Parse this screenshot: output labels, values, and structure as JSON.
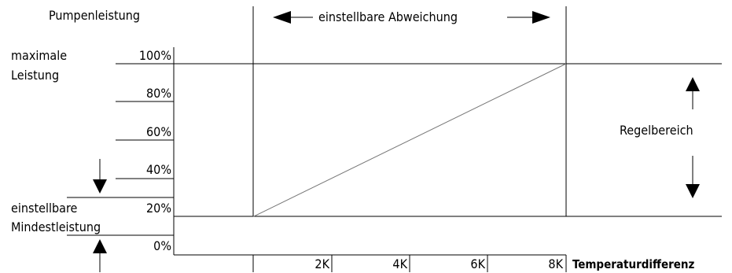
{
  "ylabel": "Pumpenleistung",
  "deviation_label": "einstellbare Abweichung",
  "max_label": [
    "maximale",
    "Leistung"
  ],
  "min_label": [
    "einstellbare",
    "Mindestleistung"
  ],
  "control_range_label": "Regelbereich",
  "xlabel": "Temperaturdifferenz",
  "y_ticks": [
    "100%",
    "80%",
    "60%",
    "40%",
    "20%",
    "0%"
  ],
  "x_ticks": [
    "2K",
    "4K",
    "6K",
    "8K"
  ],
  "chart_data": {
    "type": "line",
    "x": [
      0,
      8
    ],
    "y": [
      20,
      100
    ],
    "xlabel": "Temperaturdifferenz",
    "ylabel": "Pumpenleistung",
    "xlim": [
      0,
      8
    ],
    "ylim": [
      0,
      100
    ],
    "grid": false
  }
}
